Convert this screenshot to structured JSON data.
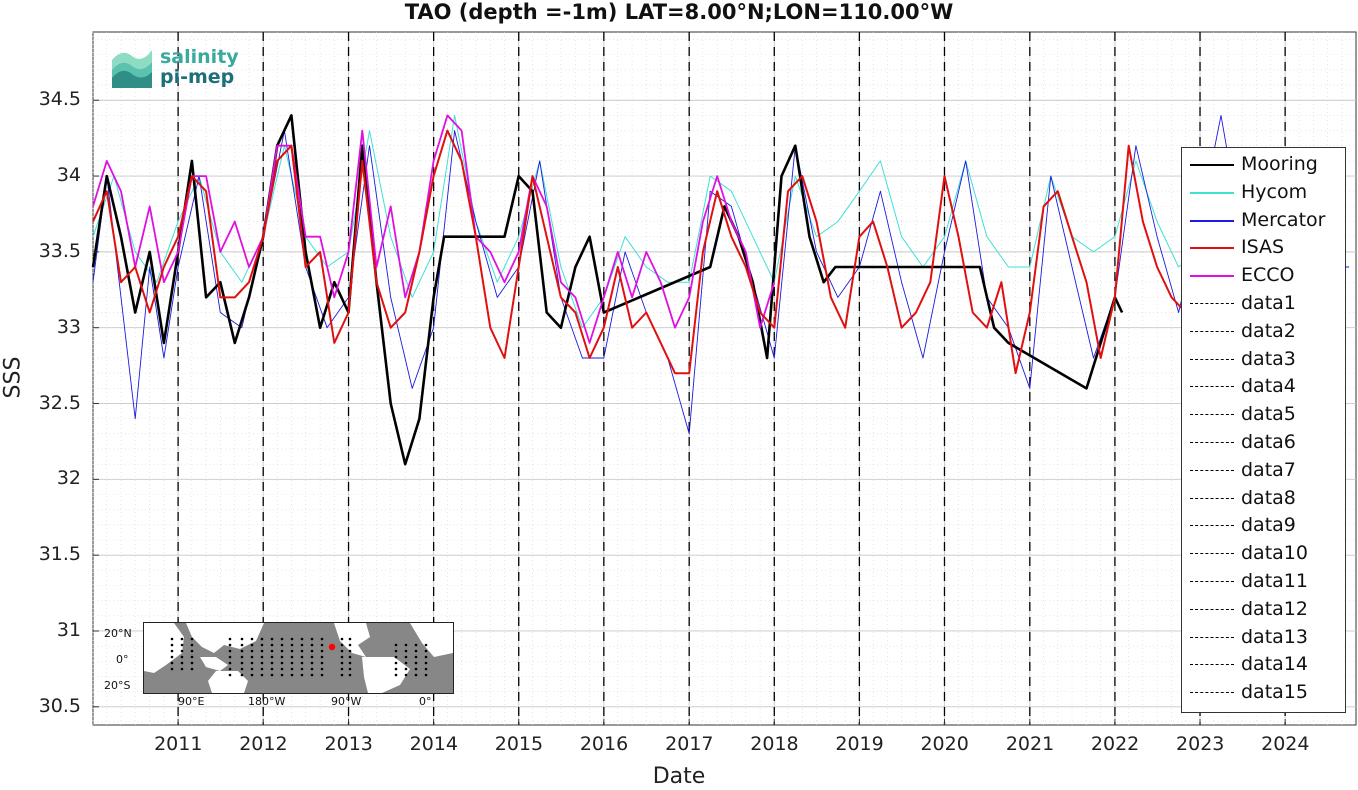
{
  "chart_data": {
    "type": "line",
    "title": "TAO (depth =-1m) LAT=8.00°N;LON=110.00°W",
    "xlabel": "Date",
    "ylabel": "SSS",
    "xlim": [
      "2010-01-01",
      "2024-10-31"
    ],
    "ylim": [
      30.38,
      34.95
    ],
    "y_ticks": [
      30.5,
      31,
      31.5,
      32,
      32.5,
      33,
      33.5,
      34,
      34.5
    ],
    "x_ticks": [
      "2011",
      "2012",
      "2013",
      "2014",
      "2015",
      "2016",
      "2017",
      "2018",
      "2019",
      "2020",
      "2021",
      "2022",
      "2023",
      "2024"
    ],
    "grid": true,
    "legend_position": "right",
    "series": [
      {
        "name": "Mooring",
        "color": "#000000",
        "x": [
          "2010-01-01",
          "2010-03-01",
          "2010-05-01",
          "2010-07-01",
          "2010-09-01",
          "2010-11-01",
          "2011-01-01",
          "2011-03-01",
          "2011-05-01",
          "2011-07-01",
          "2011-09-01",
          "2011-11-01",
          "2012-01-01",
          "2012-03-01",
          "2012-05-01",
          "2012-07-01",
          "2012-09-01",
          "2012-11-01",
          "2013-01-01",
          "2013-03-01",
          "2013-05-01",
          "2013-07-01",
          "2013-09-01",
          "2013-11-01",
          "2014-01-01",
          "2014-02-15",
          "2014-11-01",
          "2015-01-01",
          "2015-03-01",
          "2015-05-01",
          "2015-07-01",
          "2015-09-01",
          "2015-11-01",
          "2016-01-01",
          "2017-04-01",
          "2017-06-01",
          "2017-08-01",
          "2017-10-01",
          "2017-12-01",
          "2018-02-01",
          "2018-04-01",
          "2018-06-01",
          "2018-08-01",
          "2018-09-20",
          "2020-06-01",
          "2020-08-01",
          "2020-10-01",
          "2021-09-01",
          "2021-11-01",
          "2022-01-01",
          "2022-02-01"
        ],
        "y": [
          33.4,
          34.0,
          33.6,
          33.1,
          33.5,
          32.9,
          33.5,
          34.1,
          33.2,
          33.3,
          32.9,
          33.2,
          33.6,
          34.2,
          34.4,
          33.5,
          33.0,
          33.3,
          33.1,
          34.2,
          33.3,
          32.5,
          32.1,
          32.4,
          33.2,
          33.6,
          33.6,
          34.0,
          33.9,
          33.1,
          33.0,
          33.4,
          33.6,
          33.1,
          33.4,
          33.8,
          33.6,
          33.3,
          32.8,
          34.0,
          34.2,
          33.6,
          33.3,
          33.4,
          33.4,
          33.0,
          32.9,
          32.6,
          32.9,
          33.2,
          33.1
        ]
      },
      {
        "name": "Hycom",
        "color": "#3fe0d4",
        "x": [
          "2010-01-01",
          "2010-04-01",
          "2010-07-01",
          "2010-10-01",
          "2011-01-01",
          "2011-04-01",
          "2011-07-01",
          "2011-10-01",
          "2012-01-01",
          "2012-04-01",
          "2012-07-01",
          "2012-10-01",
          "2013-01-01",
          "2013-04-01",
          "2013-07-01",
          "2013-10-01",
          "2014-01-01",
          "2014-04-01",
          "2014-07-01",
          "2014-10-01",
          "2015-01-01",
          "2015-04-01",
          "2015-07-01",
          "2015-10-01",
          "2016-01-01",
          "2016-04-01",
          "2016-07-01",
          "2016-10-01",
          "2017-01-01",
          "2017-04-01",
          "2017-07-01",
          "2017-10-01",
          "2018-01-01",
          "2018-04-01",
          "2018-07-01",
          "2018-10-01",
          "2019-01-01",
          "2019-04-01",
          "2019-07-01",
          "2019-10-01",
          "2020-01-01",
          "2020-04-01",
          "2020-07-01",
          "2020-10-01",
          "2021-01-01",
          "2021-04-01",
          "2021-07-01",
          "2021-10-01",
          "2022-01-01",
          "2022-04-01",
          "2022-07-01",
          "2022-10-01",
          "2023-01-01"
        ],
        "y": [
          33.6,
          34.0,
          33.5,
          33.3,
          33.7,
          34.0,
          33.5,
          33.3,
          33.6,
          34.2,
          33.6,
          33.4,
          33.5,
          34.3,
          33.6,
          33.2,
          33.5,
          34.4,
          33.7,
          33.3,
          33.6,
          34.1,
          33.4,
          33.0,
          33.2,
          33.6,
          33.4,
          33.3,
          33.3,
          34.0,
          33.9,
          33.6,
          33.3,
          34.0,
          33.6,
          33.7,
          33.9,
          34.1,
          33.6,
          33.4,
          33.6,
          34.1,
          33.6,
          33.4,
          33.4,
          34.0,
          33.6,
          33.5,
          33.6,
          34.1,
          33.7,
          33.4,
          33.5
        ]
      },
      {
        "name": "Mercator",
        "color": "#1a1ae0",
        "x": [
          "2010-01-01",
          "2010-03-01",
          "2010-05-01",
          "2010-07-01",
          "2010-09-01",
          "2010-11-01",
          "2011-01-01",
          "2011-04-01",
          "2011-07-01",
          "2011-10-01",
          "2012-01-01",
          "2012-04-01",
          "2012-07-01",
          "2012-10-01",
          "2013-01-01",
          "2013-04-01",
          "2013-07-01",
          "2013-10-01",
          "2014-01-01",
          "2014-04-01",
          "2014-07-01",
          "2014-10-01",
          "2015-01-01",
          "2015-04-01",
          "2015-07-01",
          "2015-10-01",
          "2016-01-01",
          "2016-04-01",
          "2016-07-01",
          "2016-10-01",
          "2017-01-01",
          "2017-04-01",
          "2017-07-01",
          "2017-10-01",
          "2018-01-01",
          "2018-04-01",
          "2018-07-01",
          "2018-10-01",
          "2019-01-01",
          "2019-04-01",
          "2019-07-01",
          "2019-10-01",
          "2020-01-01",
          "2020-04-01",
          "2020-07-01",
          "2020-10-01",
          "2021-01-01",
          "2021-04-01",
          "2021-07-01",
          "2021-10-01",
          "2022-01-01",
          "2022-04-01",
          "2022-07-01",
          "2022-10-01",
          "2023-01-01",
          "2023-04-01",
          "2023-07-01",
          "2023-10-01",
          "2024-01-01",
          "2024-04-01",
          "2024-07-01",
          "2024-10-01"
        ],
        "y": [
          33.3,
          34.0,
          33.2,
          32.4,
          33.4,
          32.8,
          33.4,
          34.0,
          33.1,
          33.0,
          33.6,
          34.3,
          33.4,
          33.0,
          33.2,
          34.2,
          33.2,
          32.6,
          33.0,
          34.3,
          33.7,
          33.2,
          33.4,
          34.1,
          33.2,
          32.8,
          32.8,
          33.5,
          33.1,
          32.8,
          32.3,
          33.9,
          33.8,
          33.3,
          32.8,
          34.2,
          33.5,
          33.2,
          33.4,
          33.9,
          33.3,
          32.8,
          33.5,
          34.1,
          33.2,
          33.0,
          32.6,
          34.0,
          33.4,
          32.8,
          33.2,
          34.2,
          33.6,
          33.1,
          33.7,
          34.4,
          33.6,
          33.3,
          33.8,
          34.1,
          33.4,
          33.4
        ]
      },
      {
        "name": "ISAS",
        "color": "#e01010",
        "x": [
          "2010-01-01",
          "2010-03-01",
          "2010-05-01",
          "2010-07-01",
          "2010-09-01",
          "2010-11-01",
          "2011-01-01",
          "2011-03-01",
          "2011-05-01",
          "2011-07-01",
          "2011-09-01",
          "2011-11-01",
          "2012-01-01",
          "2012-03-01",
          "2012-05-01",
          "2012-07-01",
          "2012-09-01",
          "2012-11-01",
          "2013-01-01",
          "2013-03-01",
          "2013-05-01",
          "2013-07-01",
          "2013-09-01",
          "2013-11-01",
          "2014-01-01",
          "2014-03-01",
          "2014-05-01",
          "2014-07-01",
          "2014-09-01",
          "2014-11-01",
          "2015-01-01",
          "2015-03-01",
          "2015-05-01",
          "2015-07-01",
          "2015-09-01",
          "2015-11-01",
          "2016-01-01",
          "2016-03-01",
          "2016-05-01",
          "2016-07-01",
          "2016-09-01",
          "2016-11-01",
          "2017-01-01",
          "2017-03-01",
          "2017-05-01",
          "2017-07-01",
          "2017-09-01",
          "2017-11-01",
          "2018-01-01",
          "2018-03-01",
          "2018-05-01",
          "2018-07-01",
          "2018-09-01",
          "2018-11-01",
          "2019-01-01",
          "2019-03-01",
          "2019-05-01",
          "2019-07-01",
          "2019-09-01",
          "2019-11-01",
          "2020-01-01",
          "2020-03-01",
          "2020-05-01",
          "2020-07-01",
          "2020-09-01",
          "2020-11-01",
          "2021-01-01",
          "2021-03-01",
          "2021-05-01",
          "2021-07-01",
          "2021-09-01",
          "2021-11-01",
          "2022-01-01",
          "2022-03-01",
          "2022-05-01",
          "2022-07-01",
          "2022-09-01",
          "2022-11-01"
        ],
        "y": [
          33.7,
          33.9,
          33.3,
          33.4,
          33.1,
          33.4,
          33.6,
          34.0,
          33.9,
          33.2,
          33.2,
          33.3,
          33.6,
          34.1,
          34.2,
          33.4,
          33.5,
          32.9,
          33.1,
          34.1,
          33.3,
          33.0,
          33.1,
          33.5,
          34.0,
          34.3,
          34.1,
          33.6,
          33.0,
          32.8,
          33.4,
          34.0,
          33.6,
          33.2,
          33.1,
          32.8,
          33.0,
          33.4,
          33.0,
          33.1,
          32.9,
          32.7,
          32.7,
          33.5,
          33.9,
          33.6,
          33.4,
          33.1,
          33.0,
          33.9,
          34.0,
          33.7,
          33.2,
          33.0,
          33.6,
          33.7,
          33.4,
          33.0,
          33.1,
          33.3,
          34.0,
          33.6,
          33.1,
          33.0,
          33.3,
          32.7,
          33.1,
          33.8,
          33.9,
          33.6,
          33.3,
          32.8,
          33.2,
          34.2,
          33.7,
          33.4,
          33.2,
          33.1
        ]
      },
      {
        "name": "ECCO",
        "color": "#e010e0",
        "x": [
          "2010-01-01",
          "2010-03-01",
          "2010-05-01",
          "2010-07-01",
          "2010-09-01",
          "2010-11-01",
          "2011-01-01",
          "2011-03-01",
          "2011-05-01",
          "2011-07-01",
          "2011-09-01",
          "2011-11-01",
          "2012-01-01",
          "2012-03-01",
          "2012-05-01",
          "2012-07-01",
          "2012-09-01",
          "2012-11-01",
          "2013-01-01",
          "2013-03-01",
          "2013-05-01",
          "2013-07-01",
          "2013-09-01",
          "2013-11-01",
          "2014-01-01",
          "2014-03-01",
          "2014-05-01",
          "2014-07-01",
          "2014-09-01",
          "2014-11-01",
          "2015-01-01",
          "2015-03-01",
          "2015-05-01",
          "2015-07-01",
          "2015-09-01",
          "2015-11-01",
          "2016-01-01",
          "2016-03-01",
          "2016-05-01",
          "2016-07-01",
          "2016-09-01",
          "2016-11-01",
          "2017-01-01",
          "2017-03-01",
          "2017-05-01",
          "2017-07-01",
          "2017-09-01",
          "2017-11-01",
          "2018-01-01"
        ],
        "y": [
          33.8,
          34.1,
          33.9,
          33.4,
          33.8,
          33.3,
          33.5,
          34.0,
          34.0,
          33.5,
          33.7,
          33.4,
          33.6,
          34.2,
          34.2,
          33.6,
          33.6,
          33.2,
          33.5,
          34.3,
          33.4,
          33.8,
          33.2,
          33.5,
          34.1,
          34.4,
          34.3,
          33.6,
          33.5,
          33.3,
          33.5,
          34.0,
          33.8,
          33.3,
          33.2,
          32.9,
          33.2,
          33.5,
          33.2,
          33.5,
          33.3,
          33.0,
          33.2,
          33.7,
          34.0,
          33.7,
          33.5,
          33.0,
          33.3
        ]
      },
      {
        "name": "data1",
        "type": "vline",
        "x": "2011-01-01",
        "color": "#000000"
      },
      {
        "name": "data2",
        "type": "vline",
        "x": "2012-01-01",
        "color": "#000000"
      },
      {
        "name": "data3",
        "type": "vline",
        "x": "2013-01-01",
        "color": "#000000"
      },
      {
        "name": "data4",
        "type": "vline",
        "x": "2014-01-01",
        "color": "#000000"
      },
      {
        "name": "data5",
        "type": "vline",
        "x": "2015-01-01",
        "color": "#000000"
      },
      {
        "name": "data6",
        "type": "vline",
        "x": "2016-01-01",
        "color": "#000000"
      },
      {
        "name": "data7",
        "type": "vline",
        "x": "2017-01-01",
        "color": "#000000"
      },
      {
        "name": "data8",
        "type": "vline",
        "x": "2018-01-01",
        "color": "#000000"
      },
      {
        "name": "data9",
        "type": "vline",
        "x": "2019-01-01",
        "color": "#000000"
      },
      {
        "name": "data10",
        "type": "vline",
        "x": "2020-01-01",
        "color": "#000000"
      },
      {
        "name": "data11",
        "type": "vline",
        "x": "2021-01-01",
        "color": "#000000"
      },
      {
        "name": "data12",
        "type": "vline",
        "x": "2022-01-01",
        "color": "#000000"
      },
      {
        "name": "data13",
        "type": "vline",
        "x": "2023-01-01",
        "color": "#000000"
      },
      {
        "name": "data14",
        "type": "vline",
        "x": "2024-01-01",
        "color": "#000000"
      },
      {
        "name": "data15",
        "type": "vline",
        "x": "2025-01-01",
        "color": "#000000"
      }
    ]
  },
  "logo": {
    "line1": "salinity",
    "line2": "pi-mep"
  },
  "inset_map": {
    "lat_labels": [
      "20°N",
      "0°",
      "20°S"
    ],
    "lon_labels": [
      "90°E",
      "180°W",
      "90°W",
      "0°"
    ],
    "marker_color": "#ff0000"
  }
}
